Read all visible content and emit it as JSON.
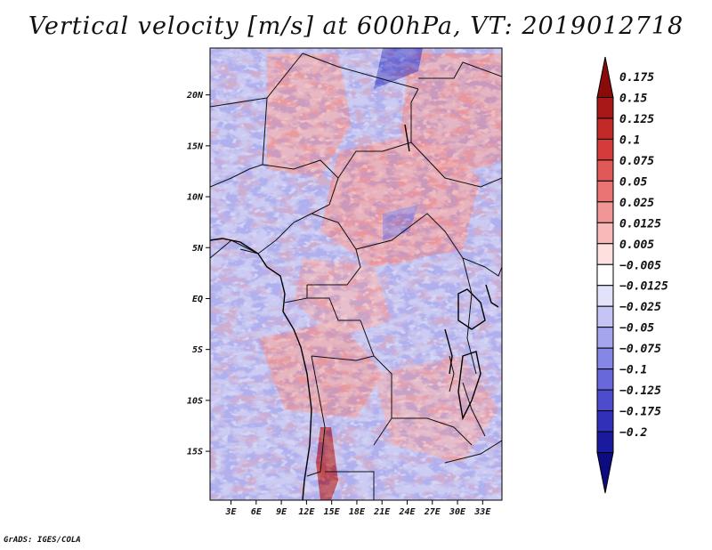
{
  "title": "Vertical velocity [m/s] at 600hPa, VT: 2019012718",
  "credit": "GrADS: IGES/COLA",
  "map": {
    "lat_labels": [
      "20N",
      "15N",
      "10N",
      "5N",
      "EQ",
      "5S",
      "10S",
      "15S"
    ],
    "lat_values": [
      20,
      15,
      10,
      5,
      0,
      -5,
      -10,
      -15
    ],
    "lon_labels": [
      "3E",
      "6E",
      "9E",
      "12E",
      "15E",
      "18E",
      "21E",
      "24E",
      "27E",
      "30E",
      "33E"
    ],
    "lon_values": [
      3,
      6,
      9,
      12,
      15,
      18,
      21,
      24,
      27,
      30,
      33
    ],
    "lon_range": [
      0.5,
      35.3
    ],
    "lat_range": [
      -19.8,
      24.6
    ]
  },
  "colorbar": {
    "labels": [
      "0.175",
      "0.15",
      "0.125",
      "0.1",
      "0.075",
      "0.05",
      "0.025",
      "0.0125",
      "0.005",
      "−0.005",
      "−0.0125",
      "−0.025",
      "−0.05",
      "−0.075",
      "−0.1",
      "−0.125",
      "−0.175",
      "−0.2"
    ],
    "colors": [
      "#8b0a0a",
      "#a81818",
      "#c22a2a",
      "#d43c3c",
      "#e05858",
      "#e87474",
      "#f09696",
      "#f8b9b9",
      "#fde0e0",
      "#ffffff",
      "#e2e2fb",
      "#c4c4f5",
      "#a5a5ee",
      "#8686e6",
      "#6868db",
      "#4c4ccc",
      "#3030b8",
      "#1a1a9e",
      "#0c0c80"
    ]
  }
}
